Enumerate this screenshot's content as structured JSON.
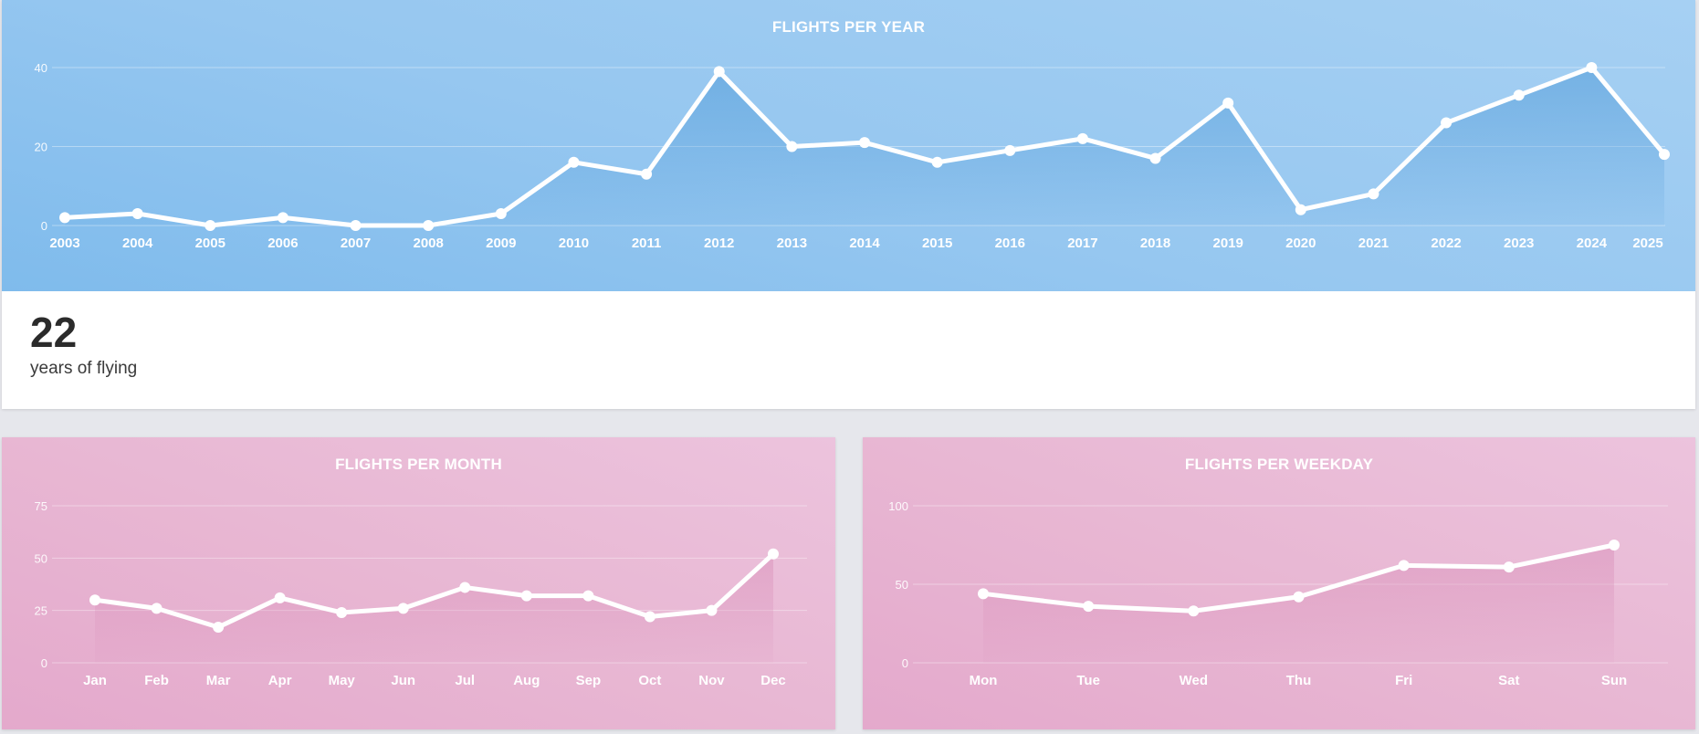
{
  "year_card": {
    "title": "FLIGHTS PER YEAR",
    "stat_value": "22",
    "stat_label": "years of flying"
  },
  "month_card": {
    "title": "FLIGHTS PER MONTH"
  },
  "weekday_card": {
    "title": "FLIGHTS PER WEEKDAY"
  },
  "colors": {
    "year_background": "#8cc2ee",
    "month_background": "#e8b5d2",
    "line": "#ffffff"
  },
  "chart_data": [
    {
      "type": "area",
      "title": "FLIGHTS PER YEAR",
      "categories": [
        "2003",
        "2004",
        "2005",
        "2006",
        "2007",
        "2008",
        "2009",
        "2010",
        "2011",
        "2012",
        "2013",
        "2014",
        "2015",
        "2016",
        "2017",
        "2018",
        "2019",
        "2020",
        "2021",
        "2022",
        "2023",
        "2024",
        "2025"
      ],
      "values": [
        2,
        3,
        0,
        2,
        0,
        0,
        3,
        16,
        13,
        39,
        20,
        21,
        16,
        19,
        22,
        17,
        31,
        4,
        8,
        26,
        33,
        40,
        18
      ],
      "yticks": [
        0,
        20,
        40
      ],
      "ylim": [
        0,
        40
      ],
      "grid": true
    },
    {
      "type": "area",
      "title": "FLIGHTS PER MONTH",
      "categories": [
        "Jan",
        "Feb",
        "Mar",
        "Apr",
        "May",
        "Jun",
        "Jul",
        "Aug",
        "Sep",
        "Oct",
        "Nov",
        "Dec"
      ],
      "values": [
        30,
        26,
        17,
        31,
        24,
        26,
        36,
        32,
        32,
        22,
        25,
        52
      ],
      "yticks": [
        0,
        25,
        50,
        75
      ],
      "ylim": [
        0,
        75
      ],
      "grid": true
    },
    {
      "type": "area",
      "title": "FLIGHTS PER WEEKDAY",
      "categories": [
        "Mon",
        "Tue",
        "Wed",
        "Thu",
        "Fri",
        "Sat",
        "Sun"
      ],
      "values": [
        44,
        36,
        33,
        42,
        62,
        61,
        75
      ],
      "yticks": [
        0,
        50,
        100
      ],
      "ylim": [
        0,
        100
      ],
      "grid": true
    }
  ]
}
